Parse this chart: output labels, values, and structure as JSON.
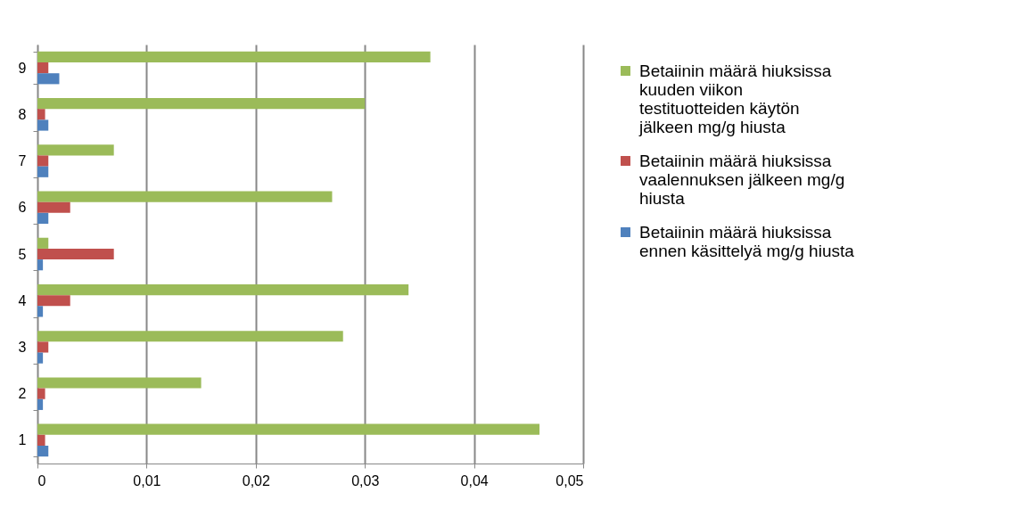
{
  "chart_data": {
    "type": "bar",
    "orientation": "horizontal",
    "categories": [
      "9",
      "8",
      "7",
      "6",
      "5",
      "4",
      "3",
      "2",
      "1"
    ],
    "series": [
      {
        "name": "Betaiinin määrä hiuksissa kuuden viikon testituotteiden käytön jälkeen mg/g hiusta",
        "color": "#9bbb59",
        "values": [
          0.036,
          0.03,
          0.007,
          0.027,
          0.001,
          0.034,
          0.028,
          0.015,
          0.046
        ]
      },
      {
        "name": "Betaiinin määrä hiuksissa vaalennuksen jälkeen mg/g hiusta",
        "color": "#c0504d",
        "values": [
          0.001,
          0.0007,
          0.001,
          0.003,
          0.007,
          0.003,
          0.001,
          0.0007,
          0.0007
        ]
      },
      {
        "name": "Betaiinin määrä hiuksissa ennen käsittelyä mg/g hiusta",
        "color": "#4f81bd",
        "values": [
          0.002,
          0.001,
          0.001,
          0.001,
          0.0005,
          0.0005,
          0.0005,
          0.0005,
          0.001
        ]
      }
    ],
    "xlim": [
      0,
      0.05
    ],
    "xticks": [
      0,
      {
        "value": 0.01,
        "label": "0,01"
      },
      {
        "value": 0.02,
        "label": "0,02"
      },
      {
        "value": 0.03,
        "label": "0,03"
      },
      {
        "value": 0.04,
        "label": "0,04"
      },
      {
        "value": 0.05,
        "label": "0,05"
      }
    ],
    "grid": "x",
    "legend": "right"
  }
}
